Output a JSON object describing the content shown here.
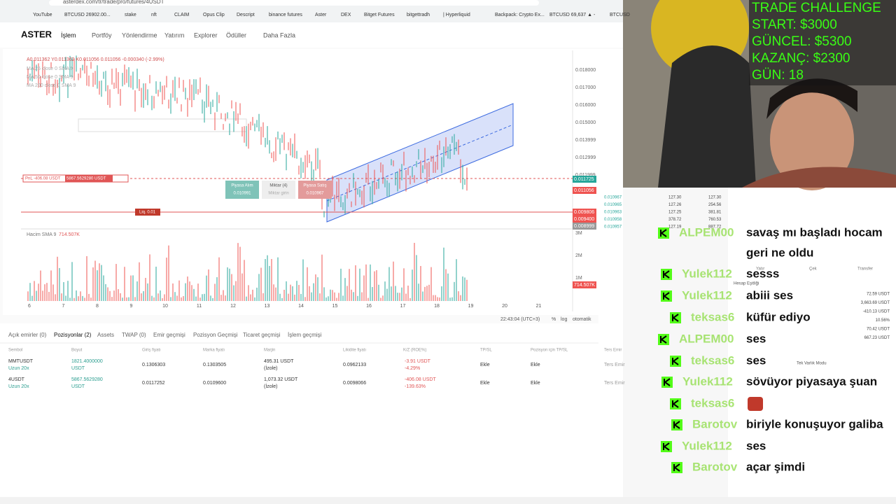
{
  "browser": {
    "url": "asterdex.com/tr/trade/pro/futures/4USDT",
    "bookmarks": [
      "YouTube",
      "BTCUSD 26902.00...",
      "stake",
      "nft",
      "CLAIM",
      "Opus Clip",
      "Descript",
      "binance futures",
      "Aster",
      "DEX",
      "Bitget Futures",
      "bitgettradh",
      "| Hyperliquid",
      "Backpack: Crypto Ex...",
      "BTCUSD 69,637 ▲ -",
      "BTCUSD"
    ]
  },
  "nav": {
    "logo": "ASTER",
    "items": [
      "İşlem",
      "Portföy",
      "Yönlendirme",
      "Yatırım",
      "Explorer",
      "Ödüller",
      "Daha Fazla"
    ]
  },
  "chart": {
    "ohlc": "A0.011362 Y0.011362 K0.011056 0.011056 -0.000340 (-2.99%)",
    "indicators": [
      "MA 25 close 0 SMA 9",
      "MA 50 close 0 SMA 9",
      "MA 200 close 0 SMA 9"
    ],
    "price_ticks": [
      "0.018000",
      "0.017000",
      "0.016000",
      "0.015000",
      "0.013999",
      "0.012999",
      "0.011999"
    ],
    "price_tags": [
      "0.011725",
      "0.011056",
      "0.009806",
      "0.009400",
      "0.008999"
    ],
    "pnl": "PnL -406.08 USDT",
    "size": "5867.5629280 USDT",
    "liq": "Liq. 0.01",
    "orders": [
      {
        "label": "Piyasa Alım",
        "value": "0.010991"
      },
      {
        "label": "Miktar (4)",
        "value": "Miktar girin"
      },
      {
        "label": "Piyasa Satış",
        "value": "0.010967"
      }
    ],
    "volume_label": "Hacim SMA 9",
    "volume_value": "714.507K",
    "volume_ticks": [
      "3M",
      "2M",
      "1M"
    ],
    "dates": [
      "6",
      "7",
      "8",
      "9",
      "10",
      "11",
      "12",
      "13",
      "14",
      "15",
      "16",
      "17",
      "18",
      "19",
      "20",
      "21"
    ],
    "time": "22:43:04 (UTC+3)",
    "scale_options": [
      "%",
      "log",
      "otomatik"
    ]
  },
  "positions": {
    "tabs": [
      "Açık emirler (0)",
      "Pozisyonlar (2)",
      "Assets",
      "TWAP (0)",
      "Emir geçmişi",
      "Pozisyon Geçmişi",
      "Ticaret geçmişi",
      "İşlem geçmişi"
    ],
    "headers": [
      "Sembol",
      "Boyut",
      "Giriş fiyatı",
      "Marka fiyatı",
      "Marjin",
      "Likidite fiyatı",
      "K/Z (ROE%)",
      "TP/SL",
      "Pozisyon için TP/SL",
      "Ters Emir"
    ],
    "rows": [
      [
        "MMTUSDT",
        "Uzun 20x",
        "1821.4000000",
        "USDT",
        "0.1306303",
        "0.1303505",
        "495.31 USDT",
        "(İzole)",
        "0.0962133",
        "-3.91 USDT",
        "-4.29%",
        "Ekle",
        "Ekle",
        "Ters Emir"
      ],
      [
        "4USDT",
        "Uzun 20x",
        "5867.5629280",
        "USDT",
        "0.0117252",
        "0.0109600",
        "1,073.32 USDT",
        "(İzole)",
        "0.0098066",
        "-406.08 USDT",
        "-139.63%",
        "Ekle",
        "Ekle",
        "Ters Emir"
      ]
    ]
  },
  "orderbook": {
    "rows": [
      [
        "0.010967",
        "127.30",
        "127.30"
      ],
      [
        "0.010965",
        "127.26",
        "254.56"
      ],
      [
        "0.010963",
        "127.25",
        "381.81"
      ],
      [
        "0.010958",
        "378.72",
        "760.53"
      ],
      [
        "0.010957",
        "127.19",
        "887.72"
      ]
    ]
  },
  "account": {
    "buttons": [
      "Yatır",
      "Çek",
      "Transfer"
    ],
    "title": "Hesap Eşitliği",
    "values": [
      "72.59 USDT",
      "3,663.69 USDT",
      "-410.13 USDT",
      "10.56%",
      "70.42 USDT",
      "667.23 USDT"
    ],
    "mode": "Tek Varlık Modu"
  },
  "overlay": [
    "TRADE CHALLENGE",
    "START: $3000",
    "GÜNCEL: $5300",
    "KAZANÇ: $2300",
    "GÜN: 18"
  ],
  "chat": [
    {
      "user": "ALPEM00",
      "text": "savaş mı başladı hocam"
    },
    {
      "text": "geri ne oldu"
    },
    {
      "user": "Yulek112",
      "text": "sesss"
    },
    {
      "user": "Yulek112",
      "text": "abiii ses"
    },
    {
      "user": "teksas6",
      "text": "küfür ediyo"
    },
    {
      "user": "ALPEM00",
      "text": "ses"
    },
    {
      "user": "teksas6",
      "text": "ses"
    },
    {
      "user": "Yulek112",
      "text": "sövüyor piyasaya şuan"
    },
    {
      "user": "teksas6"
    },
    {
      "user": "Barotov",
      "text": "biriyle konuşuyor galiba"
    },
    {
      "user": "Yulek112",
      "text": "ses"
    },
    {
      "user": "Barotov",
      "text": "açar şimdi"
    }
  ]
}
